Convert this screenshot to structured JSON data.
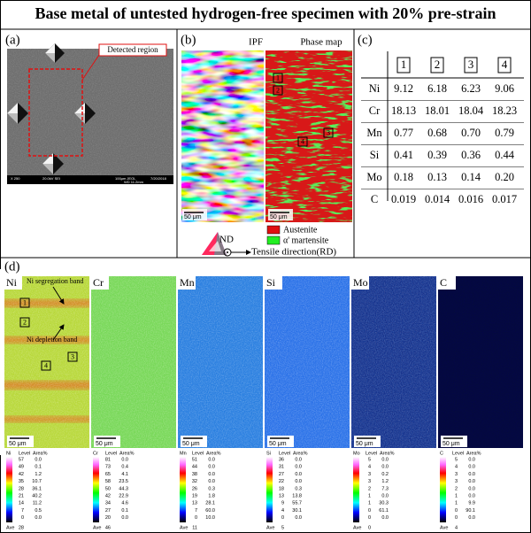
{
  "title": "Base metal of untested hydrogen-free specimen with  20% pre-strain",
  "panel_a": {
    "label": "(a)",
    "annotation": "Detected region",
    "sem_info": [
      "X 250",
      "20.0kV SEI",
      "100μm JEOL",
      "WD 11.2mm",
      "7/20/2018"
    ]
  },
  "panel_b": {
    "label": "(b)",
    "ipf_title": "IPF",
    "phase_title": "Phase map",
    "scale_bars": [
      "50 μm",
      "50 μm"
    ],
    "regions": [
      "1",
      "2",
      "3",
      "4"
    ],
    "legend": [
      "Austenite",
      "α' martensite"
    ],
    "nd": "ND",
    "rd": "Tensile direction(RD)"
  },
  "panel_c": {
    "label": "(c)",
    "table": {
      "columns": [
        "1",
        "2",
        "3",
        "4"
      ],
      "rows": [
        [
          "Ni",
          "9.12",
          "6.18",
          "6.23",
          "9.06"
        ],
        [
          "Cr",
          "18.13",
          "18.01",
          "18.04",
          "18.23"
        ],
        [
          "Mn",
          "0.77",
          "0.68",
          "0.70",
          "0.79"
        ],
        [
          "Si",
          "0.41",
          "0.39",
          "0.36",
          "0.44"
        ],
        [
          "Mo",
          "0.18",
          "0.13",
          "0.14",
          "0.20"
        ],
        [
          "C",
          "0.019",
          "0.014",
          "0.016",
          "0.017"
        ]
      ]
    }
  },
  "panel_d": {
    "label": "(d)",
    "annotations": [
      "Ni segregation band",
      "Ni depletion band"
    ],
    "regions": [
      "1",
      "2",
      "3",
      "4"
    ],
    "level_header": "Level",
    "area_header": "Area%",
    "ave_label": "Ave",
    "maps": [
      {
        "element": "Ni",
        "scale_bar": "50 μm",
        "levels": [
          "57",
          "49",
          "42",
          "35",
          "28",
          "21",
          "14",
          "7",
          "0"
        ],
        "areas": [
          "0.0",
          "0.1",
          "1.2",
          "10.7",
          "36.1",
          "40.2",
          "11.2",
          "0.5",
          "0.0"
        ],
        "ave": "28"
      },
      {
        "element": "Cr",
        "scale_bar": "50 μm",
        "levels": [
          "81",
          "73",
          "65",
          "58",
          "50",
          "42",
          "34",
          "27",
          "20"
        ],
        "areas": [
          "0.0",
          "0.4",
          "4.1",
          "23.5",
          "44.3",
          "22.9",
          "4.6",
          "0.1",
          "0.0"
        ],
        "ave": "46"
      },
      {
        "element": "Mn",
        "scale_bar": "50 μm",
        "levels": [
          "51",
          "44",
          "38",
          "32",
          "26",
          "19",
          "13",
          "7",
          "0"
        ],
        "areas": [
          "0.0",
          "0.0",
          "0.0",
          "0.0",
          "0.3",
          "1.8",
          "28.1",
          "60.0",
          "10.0"
        ],
        "ave": "11"
      },
      {
        "element": "Si",
        "scale_bar": "50 μm",
        "levels": [
          "36",
          "31",
          "27",
          "22",
          "18",
          "13",
          "9",
          "4",
          "0"
        ],
        "areas": [
          "0.0",
          "0.0",
          "0.0",
          "0.0",
          "0.3",
          "13.8",
          "55.7",
          "30.1",
          "0.0"
        ],
        "ave": "5"
      },
      {
        "element": "Mo",
        "scale_bar": "50 μm",
        "levels": [
          "5",
          "4",
          "3",
          "3",
          "2",
          "1",
          "1",
          "0",
          "0"
        ],
        "areas": [
          "0.0",
          "0.0",
          "0.2",
          "1.2",
          "7.3",
          "0.0",
          "30.3",
          "61.1",
          "0.0"
        ],
        "ave": "0"
      },
      {
        "element": "C",
        "scale_bar": "50 μm",
        "levels": [
          "5",
          "4",
          "3",
          "3",
          "2",
          "1",
          "1",
          "0",
          "0"
        ],
        "areas": [
          "0.0",
          "0.0",
          "0.0",
          "0.0",
          "0.0",
          "0.0",
          "9.9",
          "90.1",
          "0.0"
        ],
        "ave": "4"
      }
    ]
  }
}
